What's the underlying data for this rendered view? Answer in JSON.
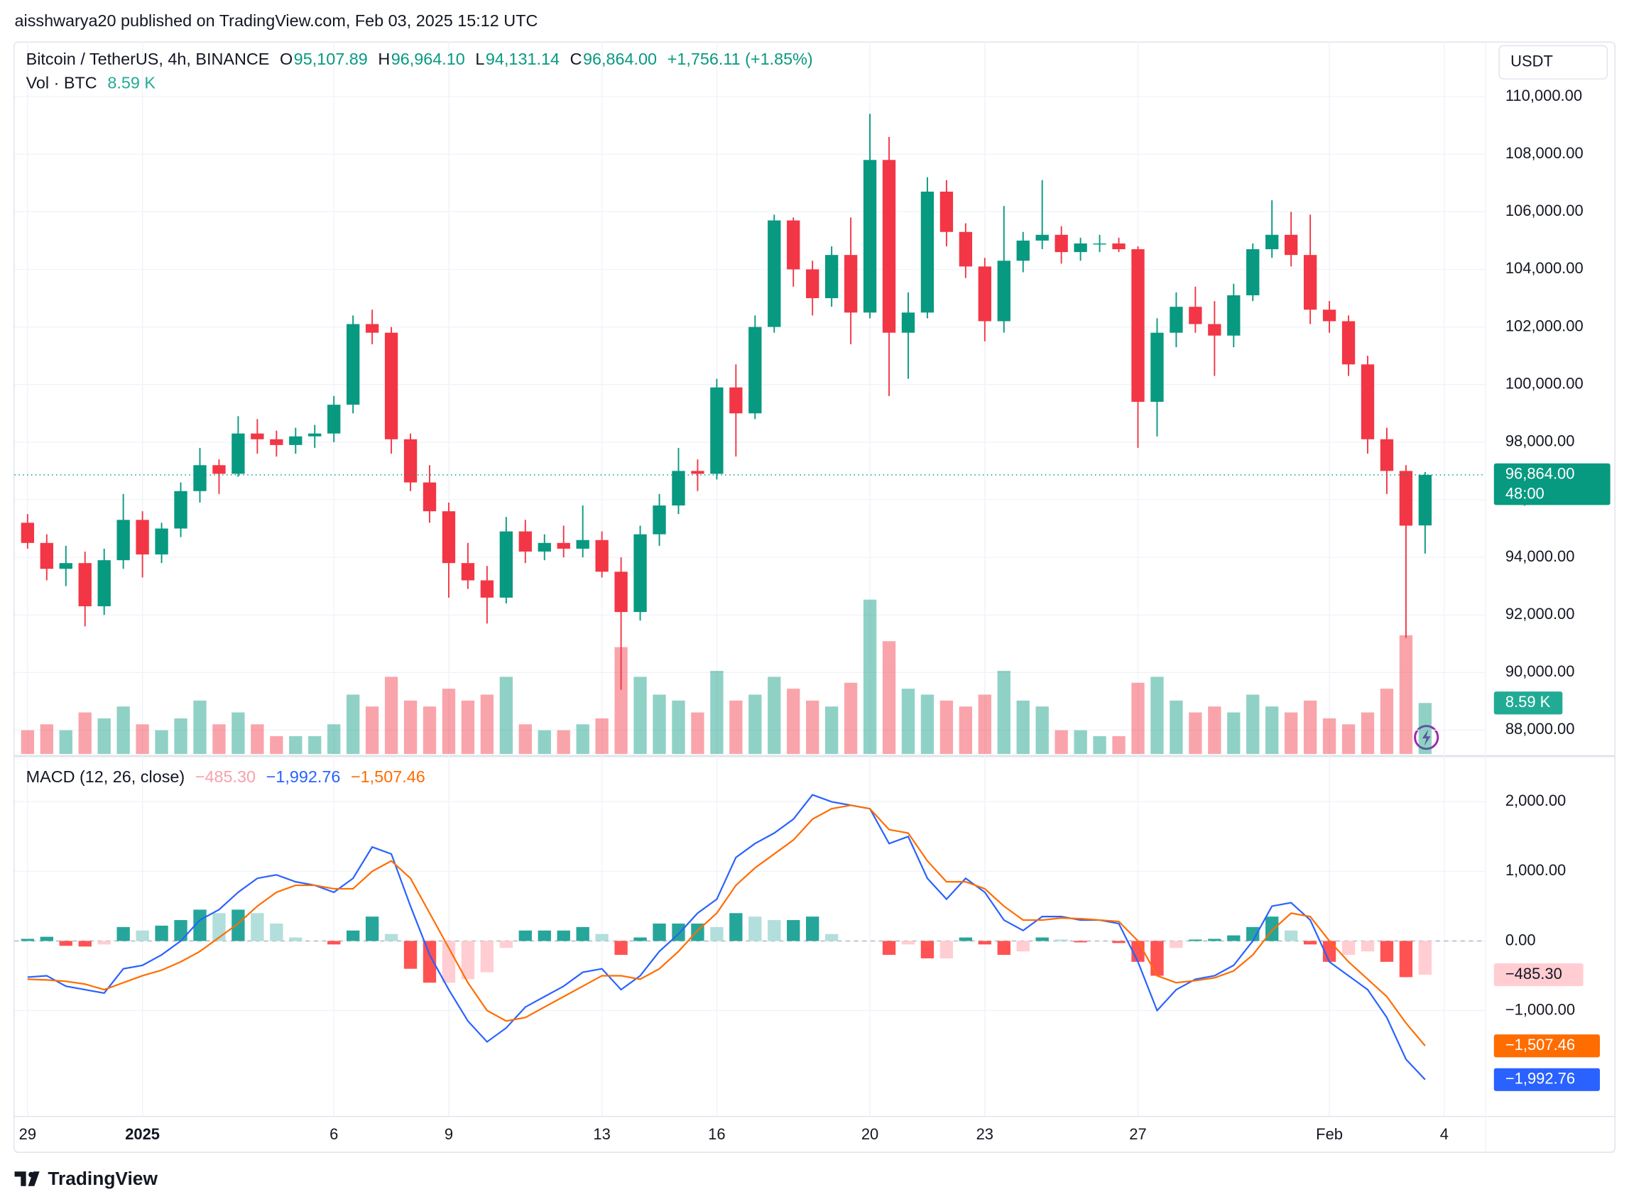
{
  "header": {
    "publisher": "aisshwarya20 published on TradingView.com, Feb 03, 2025 15:12 UTC"
  },
  "footer": {
    "brand": "TradingView"
  },
  "chart_data": [
    {
      "type": "candlestick",
      "title": "Bitcoin / TetherUS, 4h, BINANCE",
      "currency": "USDT",
      "countdown": "48:00",
      "legend": {
        "ohlc": [
          {
            "key": "O",
            "value": "95,107.89"
          },
          {
            "key": "H",
            "value": "96,964.10"
          },
          {
            "key": "L",
            "value": "94,131.14"
          },
          {
            "key": "C",
            "value": "96,864.00"
          }
        ],
        "change": "+1,756.11 (+1.85%)"
      },
      "colors": {
        "up": "#089981",
        "down": "#f23645"
      },
      "grid": true,
      "xlim": [
        -3.34,
        35.08
      ],
      "xticks": [
        {
          "value": -3,
          "label": "29"
        },
        {
          "value": 0,
          "label": "2025",
          "major": true
        },
        {
          "value": 5,
          "label": "6"
        },
        {
          "value": 8,
          "label": "9"
        },
        {
          "value": 12,
          "label": "13"
        },
        {
          "value": 15,
          "label": "16"
        },
        {
          "value": 19,
          "label": "20"
        },
        {
          "value": 22,
          "label": "23"
        },
        {
          "value": 26,
          "label": "27"
        },
        {
          "value": 31,
          "label": "Feb"
        },
        {
          "value": 34,
          "label": "4"
        }
      ],
      "ylim": [
        87170,
        111912
      ],
      "yticks": [
        {
          "value": 88000,
          "label": "88,000.00"
        },
        {
          "value": 90000,
          "label": "90,000.00"
        },
        {
          "value": 92000,
          "label": "92,000.00"
        },
        {
          "value": 94000,
          "label": "94,000.00"
        },
        {
          "value": 96000,
          "label": "96,000.00"
        },
        {
          "value": 98000,
          "label": "98,000.00"
        },
        {
          "value": 100000,
          "label": "100,000.00"
        },
        {
          "value": 102000,
          "label": "102,000.00"
        },
        {
          "value": 104000,
          "label": "104,000.00"
        },
        {
          "value": 106000,
          "label": "106,000.00"
        },
        {
          "value": 108000,
          "label": "108,000.00"
        },
        {
          "value": 110000,
          "label": "110,000.00"
        }
      ],
      "x": [
        -3,
        -2.5,
        -2,
        -1.5,
        -1,
        -0.5,
        0,
        0.5,
        1,
        1.5,
        2,
        2.5,
        3,
        3.5,
        4,
        4.5,
        5,
        5.5,
        6,
        6.5,
        7,
        7.5,
        8,
        8.5,
        9,
        9.5,
        10,
        10.5,
        11,
        11.5,
        12,
        12.5,
        13,
        13.5,
        14,
        14.5,
        15,
        15.5,
        16,
        16.5,
        17,
        17.5,
        18,
        18.5,
        19,
        19.5,
        20,
        20.5,
        21,
        21.5,
        22,
        22.5,
        23,
        23.5,
        24,
        24.5,
        25,
        25.5,
        26,
        26.5,
        27,
        27.5,
        28,
        28.5,
        29,
        29.5,
        30,
        30.5,
        31,
        31.5,
        32,
        32.5,
        33,
        33.5
      ],
      "open": [
        95200,
        94500,
        93600,
        93800,
        92300,
        93900,
        95300,
        94100,
        95000,
        96300,
        97200,
        96900,
        98300,
        98100,
        97900,
        98200,
        98300,
        99300,
        102100,
        101800,
        98100,
        96600,
        95600,
        93800,
        93200,
        92600,
        94900,
        94200,
        94500,
        94300,
        94600,
        93500,
        92100,
        94800,
        95800,
        97000,
        96900,
        99900,
        99000,
        102000,
        105700,
        104000,
        103000,
        104500,
        102500,
        107800,
        101800,
        102500,
        106700,
        105300,
        104100,
        102200,
        104300,
        105000,
        105200,
        104600,
        104900,
        104900,
        104700,
        99400,
        101800,
        102700,
        102100,
        101700,
        103100,
        104700,
        105200,
        104500,
        102600,
        102200,
        100700,
        98100,
        97000,
        95107.89
      ],
      "high": [
        95500,
        94800,
        94400,
        94200,
        94300,
        96200,
        95600,
        95200,
        96600,
        97800,
        97400,
        98900,
        98800,
        98400,
        98500,
        98600,
        99600,
        102400,
        102600,
        102000,
        98300,
        97200,
        95900,
        94500,
        93700,
        95400,
        95300,
        94800,
        95100,
        95800,
        94900,
        94000,
        95100,
        96200,
        97800,
        97400,
        100200,
        100700,
        102400,
        105900,
        105800,
        104300,
        104800,
        105800,
        109400,
        108600,
        103200,
        107200,
        107100,
        105600,
        104400,
        106200,
        105300,
        107100,
        105500,
        105100,
        105200,
        105100,
        104800,
        102300,
        103200,
        103400,
        102900,
        103500,
        104900,
        106400,
        106000,
        105900,
        102900,
        102400,
        101000,
        98500,
        97200,
        96964.1
      ],
      "low": [
        94300,
        93200,
        93000,
        91600,
        92000,
        93600,
        93300,
        93800,
        94700,
        95900,
        96200,
        96800,
        97600,
        97500,
        97600,
        97800,
        98000,
        99000,
        101400,
        97600,
        96300,
        95200,
        92600,
        92900,
        91700,
        92400,
        93800,
        93900,
        94000,
        94000,
        93300,
        89400,
        91800,
        94400,
        95500,
        96300,
        96700,
        97500,
        98800,
        101800,
        103400,
        102400,
        102700,
        101400,
        102300,
        99600,
        100200,
        102300,
        104800,
        103700,
        101500,
        101800,
        103900,
        104700,
        104200,
        104300,
        104600,
        104600,
        97800,
        98200,
        101300,
        101800,
        100300,
        101300,
        102900,
        104400,
        104100,
        102100,
        101800,
        100300,
        97600,
        96200,
        91200,
        94131.14
      ],
      "close": [
        94500,
        93600,
        93800,
        92300,
        93900,
        95300,
        94100,
        95000,
        96300,
        97200,
        96900,
        98300,
        98100,
        97900,
        98200,
        98300,
        99300,
        102100,
        101800,
        98100,
        96600,
        95600,
        93800,
        93200,
        92600,
        94900,
        94200,
        94500,
        94300,
        94600,
        93500,
        92100,
        94800,
        95800,
        97000,
        96900,
        99900,
        99000,
        102000,
        105700,
        104000,
        103000,
        104500,
        102500,
        107800,
        101800,
        102500,
        106700,
        105300,
        104100,
        102200,
        104300,
        105000,
        105200,
        104600,
        104900,
        104900,
        104700,
        99400,
        101800,
        102700,
        102100,
        101700,
        103100,
        104700,
        105200,
        104500,
        102600,
        102200,
        100700,
        98100,
        97000,
        95100,
        96864
      ],
      "volume": {
        "title": "Vol · BTC",
        "value_label": "8.59 K",
        "ylim": [
          0,
          120
        ],
        "up_color": "rgba(8,153,129,0.45)",
        "down_color": "rgba(242,54,69,0.45)",
        "label_color": "#22ab94",
        "values": [
          4,
          5,
          4,
          7,
          6,
          8,
          5,
          4,
          6,
          9,
          5,
          7,
          5,
          3,
          3,
          3,
          5,
          10,
          8,
          13,
          9,
          8,
          11,
          9,
          10,
          13,
          5,
          4,
          4,
          5,
          6,
          18,
          13,
          10,
          9,
          7,
          14,
          9,
          10,
          13,
          11,
          9,
          8,
          12,
          26,
          19,
          11,
          10,
          9,
          8,
          10,
          14,
          9,
          8,
          4,
          4,
          3,
          3,
          12,
          13,
          9,
          7,
          8,
          7,
          10,
          8,
          7,
          9,
          6,
          5,
          7,
          11,
          20,
          8.59
        ]
      }
    },
    {
      "type": "line",
      "title": "MACD (12, 26, close)",
      "ylim": [
        -2522,
        2627
      ],
      "yticks": [
        {
          "value": -1000,
          "label": "−1,000.00"
        },
        {
          "value": 0,
          "label": "0.00"
        },
        {
          "value": 1000,
          "label": "1,000.00"
        },
        {
          "value": 2000,
          "label": "2,000.00"
        }
      ],
      "histogram": {
        "value_label": "−485.30",
        "colors": {
          "up_strong": "#26a69a",
          "up_weak": "#b2dfdb",
          "down_strong": "#ff5252",
          "down_weak": "#ffcdd2"
        },
        "values": [
          30,
          60,
          -70,
          -80,
          -50,
          200,
          150,
          220,
          300,
          450,
          400,
          450,
          400,
          250,
          50,
          0,
          -50,
          150,
          350,
          100,
          -400,
          -600,
          -600,
          -550,
          -450,
          -100,
          150,
          150,
          150,
          200,
          100,
          -200,
          50,
          250,
          250,
          250,
          200,
          400,
          350,
          300,
          300,
          350,
          100,
          0,
          0,
          -200,
          -50,
          -250,
          -250,
          50,
          -50,
          -200,
          -150,
          50,
          20,
          -20,
          0,
          -30,
          -300,
          -500,
          -100,
          20,
          30,
          80,
          200,
          350,
          150,
          -50,
          -300,
          -200,
          -150,
          -300,
          -520,
          -485.3
        ]
      },
      "series": [
        {
          "color": "#2962ff",
          "value_label": "−1,992.76",
          "values": [
            -520,
            -500,
            -650,
            -700,
            -750,
            -400,
            -350,
            -200,
            0,
            300,
            450,
            700,
            900,
            950,
            850,
            800,
            700,
            900,
            1350,
            1250,
            500,
            -200,
            -700,
            -1150,
            -1450,
            -1250,
            -950,
            -800,
            -650,
            -450,
            -400,
            -700,
            -500,
            -150,
            100,
            400,
            600,
            1200,
            1400,
            1550,
            1750,
            2100,
            2000,
            1950,
            1900,
            1400,
            1500,
            900,
            600,
            900,
            700,
            300,
            150,
            350,
            350,
            300,
            300,
            250,
            -300,
            -1000,
            -700,
            -550,
            -500,
            -350,
            0,
            500,
            550,
            300,
            -300,
            -500,
            -700,
            -1100,
            -1700,
            -1992.76
          ]
        },
        {
          "color": "#ff6d00",
          "value_label": "−1,507.46",
          "values": [
            -550,
            -560,
            -580,
            -620,
            -700,
            -600,
            -500,
            -420,
            -300,
            -150,
            50,
            250,
            500,
            700,
            800,
            800,
            750,
            750,
            1000,
            1150,
            900,
            400,
            -100,
            -600,
            -1000,
            -1150,
            -1100,
            -950,
            -800,
            -650,
            -500,
            -500,
            -550,
            -400,
            -150,
            150,
            400,
            800,
            1050,
            1250,
            1450,
            1750,
            1900,
            1950,
            1900,
            1600,
            1550,
            1150,
            850,
            850,
            750,
            500,
            300,
            300,
            330,
            320,
            300,
            280,
            0,
            -500,
            -600,
            -570,
            -530,
            -430,
            -200,
            150,
            400,
            350,
            0,
            -300,
            -550,
            -800,
            -1180,
            -1507.46
          ]
        }
      ]
    }
  ]
}
